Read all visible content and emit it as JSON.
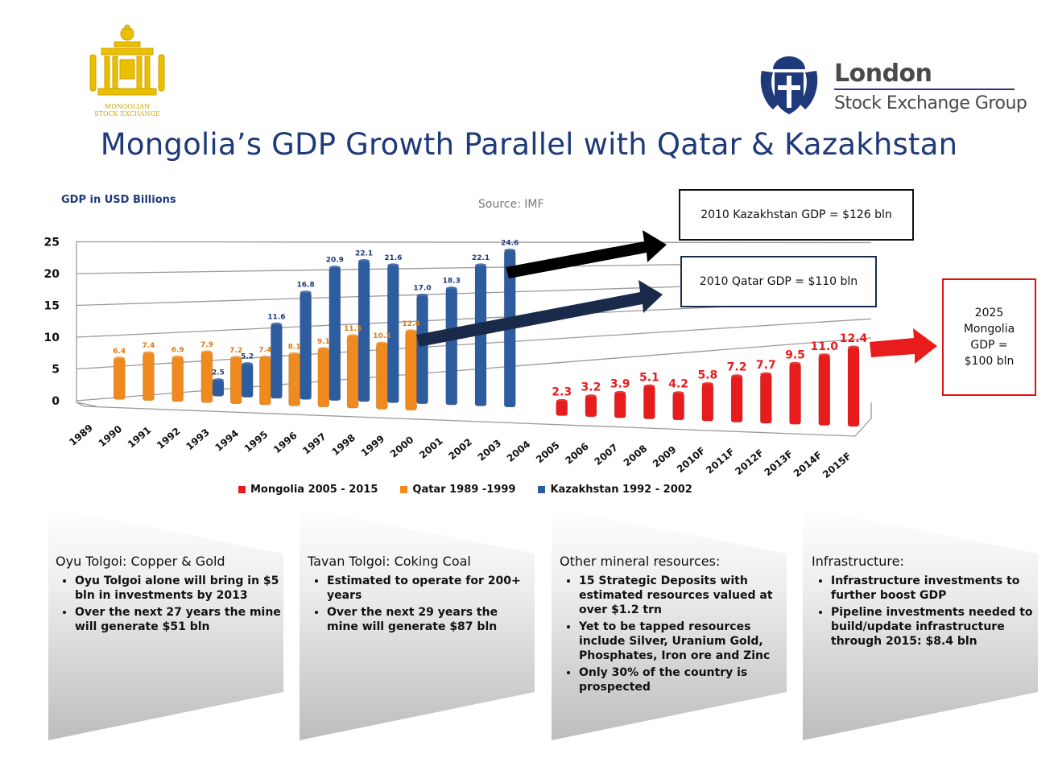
{
  "title": "Mongolia’s GDP Growth Parallel with Qatar & Kazakhstan",
  "logos": {
    "mse_caption": [
      "MONGOLIAN",
      "STOCK EXCHANGE"
    ],
    "lse_line1": "London",
    "lse_line2": "Stock Exchange Group"
  },
  "chart_data": {
    "type": "bar",
    "ylabel": "GDP in USD Billions",
    "source": "Source: IMF",
    "ylim": [
      0,
      25
    ],
    "yticks": [
      "0",
      "5",
      "10",
      "15",
      "20",
      "25"
    ],
    "categories": [
      "1989",
      "1990",
      "1991",
      "1992",
      "1993",
      "1994",
      "1995",
      "1996",
      "1997",
      "1998",
      "1999",
      "2000",
      "2001",
      "2002",
      "2003",
      "2004",
      "2005",
      "2006",
      "2007",
      "2008",
      "2009",
      "2010F",
      "2011F",
      "2012F",
      "2013F",
      "2014F",
      "2015F"
    ],
    "legend_position": "bottom",
    "series": [
      {
        "name": "Qatar 1989 -1999",
        "color": "#f08a1e",
        "points": [
          {
            "x": "1990",
            "y": 6.4,
            "label": "6.4"
          },
          {
            "x": "1991",
            "y": 7.4,
            "label": "7.4"
          },
          {
            "x": "1992",
            "y": 6.9,
            "label": "6.9"
          },
          {
            "x": "1993",
            "y": 7.9,
            "label": "7.9"
          },
          {
            "x": "1994",
            "y": 7.2,
            "label": "7.2"
          },
          {
            "x": "1995",
            "y": 7.4,
            "label": "7.4"
          },
          {
            "x": "1996",
            "y": 8.1,
            "label": "8.1"
          },
          {
            "x": "1997",
            "y": 9.1,
            "label": "9.1"
          },
          {
            "x": "1998",
            "y": 11.3,
            "label": "11.3"
          },
          {
            "x": "1999",
            "y": 10.3,
            "label": "10.3"
          },
          {
            "x": "2000",
            "y": 12.4,
            "label": "12.4"
          }
        ]
      },
      {
        "name": "Kazakhstan 1992 - 2002",
        "color": "#2e5d9f",
        "points": [
          {
            "x": "1993",
            "y": 2.5,
            "label": "2.5"
          },
          {
            "x": "1994",
            "y": 5.2,
            "label": "5.2"
          },
          {
            "x": "1995",
            "y": 11.6,
            "label": "11.6"
          },
          {
            "x": "1996",
            "y": 16.8,
            "label": "16.8"
          },
          {
            "x": "1997",
            "y": 20.9,
            "label": "20.9"
          },
          {
            "x": "1998",
            "y": 22.1,
            "label": "22.1"
          },
          {
            "x": "1999",
            "y": 21.6,
            "label": "21.6"
          },
          {
            "x": "2000",
            "y": 17.0,
            "label": "17.0"
          },
          {
            "x": "2001",
            "y": 18.3,
            "label": "18.3"
          },
          {
            "x": "2002",
            "y": 22.1,
            "label": "22.1"
          },
          {
            "x": "2003",
            "y": 24.6,
            "label": "24.6"
          }
        ]
      },
      {
        "name": "Mongolia 2005 - 2015",
        "color": "#e81c1c",
        "points": [
          {
            "x": "2005",
            "y": 2.3,
            "label": "2.3"
          },
          {
            "x": "2006",
            "y": 3.2,
            "label": "3.2"
          },
          {
            "x": "2007",
            "y": 3.9,
            "label": "3.9"
          },
          {
            "x": "2008",
            "y": 5.1,
            "label": "5.1"
          },
          {
            "x": "2009",
            "y": 4.2,
            "label": "4.2"
          },
          {
            "x": "2010F",
            "y": 5.8,
            "label": "5.8"
          },
          {
            "x": "2011F",
            "y": 7.2,
            "label": "7.2"
          },
          {
            "x": "2012F",
            "y": 7.7,
            "label": "7.7"
          },
          {
            "x": "2013F",
            "y": 9.5,
            "label": "9.5"
          },
          {
            "x": "2014F",
            "y": 11.0,
            "label": "11.0"
          },
          {
            "x": "2015F",
            "y": 12.4,
            "label": "12.4"
          }
        ]
      }
    ],
    "legend": [
      "Mongolia 2005 - 2015",
      "Qatar 1989 -1999",
      "Kazakhstan 1992 - 2002"
    ]
  },
  "callouts": {
    "kazakhstan": "2010 Kazakhstan GDP = $126 bln",
    "qatar": "2010 Qatar GDP = $110 bln",
    "mongolia_lines": [
      "2025",
      "Mongolia",
      "GDP =",
      "$100 bln"
    ]
  },
  "panels": [
    {
      "title": "Oyu Tolgoi: Copper & Gold",
      "bullets": [
        "Oyu Tolgoi alone will bring in $5 bln in investments by 2013",
        "Over the next 27 years the mine will generate $51 bln"
      ]
    },
    {
      "title": "Tavan Tolgoi: Coking Coal",
      "bullets": [
        "Estimated to operate for 200+ years",
        "Over the next 29 years the mine will generate $87 bln"
      ]
    },
    {
      "title": "Other mineral resources:",
      "bullets": [
        "15 Strategic Deposits with estimated resources valued at over $1.2 trn",
        "Yet to be tapped resources include Silver, Uranium Gold, Phosphates, Iron ore and Zinc",
        "Only 30% of the country is prospected"
      ]
    },
    {
      "title": "Infrastructure:",
      "bullets": [
        "Infrastructure investments to further boost GDP",
        "Pipeline investments needed to build/update infrastructure through 2015: $8.4 bln"
      ]
    }
  ]
}
